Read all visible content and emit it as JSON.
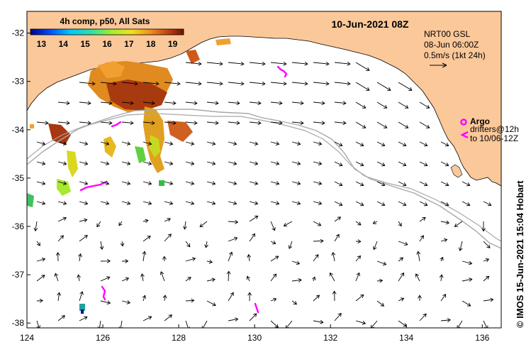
{
  "header": {
    "date_title": "10-Jun-2021 08Z",
    "product_title": "4h comp, p50, All Sats"
  },
  "colorbar": {
    "labels": [
      "13",
      "14",
      "15",
      "16",
      "17",
      "18",
      "19"
    ],
    "min": 12.5,
    "max": 19.5,
    "colors": [
      "#00008f",
      "#0050ff",
      "#00c8ff",
      "#30e0a0",
      "#a0f030",
      "#f0e020",
      "#f09020",
      "#c04010",
      "#701000"
    ]
  },
  "velocity_info": {
    "line1": "NRT00 GSL",
    "line2": "08-Jun 06:00Z",
    "line3": "0.5m/s (1kt 24h)"
  },
  "legend": {
    "argo_label": "Argo",
    "drifters_line1": "drifters@12h",
    "drifters_line2": "to 10/06-12Z"
  },
  "credit": "© IMOS 15-Jun-2021 15:04 Hobart",
  "axes": {
    "x_ticks": [
      124,
      126,
      128,
      130,
      132,
      134,
      136
    ],
    "y_ticks": [
      -32,
      -33,
      -34,
      -35,
      -36,
      -37,
      -38
    ],
    "lon_range": [
      124,
      136.5
    ],
    "lat_range": [
      -38.1,
      -31.55
    ]
  },
  "colors": {
    "land": "#fbc89a",
    "arrow": "#000000",
    "isobath": "#a8a8a8",
    "argo": "#ff00ff"
  }
}
